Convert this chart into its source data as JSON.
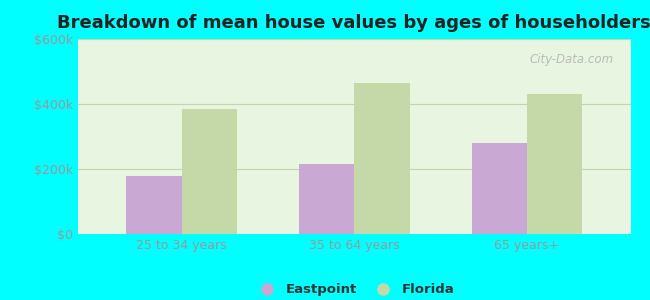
{
  "title": "Breakdown of mean house values by ages of householders",
  "categories": [
    "25 to 34 years",
    "35 to 64 years",
    "65 years+"
  ],
  "eastpoint_values": [
    180000,
    215000,
    280000
  ],
  "florida_values": [
    385000,
    465000,
    430000
  ],
  "ylim": [
    0,
    600000
  ],
  "yticks": [
    0,
    200000,
    400000,
    600000
  ],
  "ytick_labels": [
    "$0",
    "$200k",
    "$400k",
    "$600k"
  ],
  "bar_color_eastpoint": "#c9a8d4",
  "bar_color_florida": "#c5d9a8",
  "background_outer": "#00ffff",
  "background_inner": "#dff0d8",
  "grid_color": "#c0d8b0",
  "title_fontsize": 13,
  "bar_width": 0.32,
  "legend_eastpoint": "Eastpoint",
  "legend_florida": "Florida",
  "watermark": "City-Data.com",
  "tick_label_color": "#999999",
  "title_color": "#222222"
}
